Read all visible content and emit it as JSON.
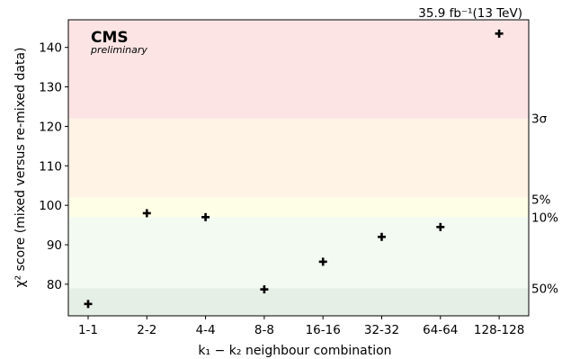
{
  "chart_data": {
    "type": "scatter",
    "title": "",
    "lumi_label": "35.9 fb⁻¹(13 TeV)",
    "experiment_label": "CMS",
    "status_label": "preliminary",
    "xlabel": "k₁ − k₂ neighbour combination",
    "ylabel": "χ² score (mixed versus re-mixed data)",
    "ylim": [
      72,
      147
    ],
    "yticks": [
      80,
      90,
      100,
      110,
      120,
      130,
      140
    ],
    "grid": false,
    "categories": [
      "1-1",
      "2-2",
      "4-4",
      "8-8",
      "16-16",
      "32-32",
      "64-64",
      "128-128"
    ],
    "values": [
      75.0,
      98.0,
      97.0,
      78.7,
      85.7,
      92.0,
      94.5,
      143.5
    ],
    "marker": "plus",
    "marker_color": "#000000",
    "bands": [
      {
        "label": "50%",
        "from": 72,
        "to": 79,
        "color": "#e6efe6"
      },
      {
        "label": "10%",
        "from": 79,
        "to": 97,
        "color": "#f2faf2"
      },
      {
        "label": "5%",
        "from": 97,
        "to": 102,
        "color": "#fefde6"
      },
      {
        "label": "3σ",
        "from": 102,
        "to": 122,
        "color": "#fef3e4"
      },
      {
        "label": "",
        "from": 122,
        "to": 147,
        "color": "#fde4e4"
      }
    ],
    "band_labels": [
      {
        "text": "3σ",
        "y": 122
      },
      {
        "text": "5%",
        "y": 101.5
      },
      {
        "text": "10%",
        "y": 97
      },
      {
        "text": "50%",
        "y": 79
      }
    ]
  }
}
